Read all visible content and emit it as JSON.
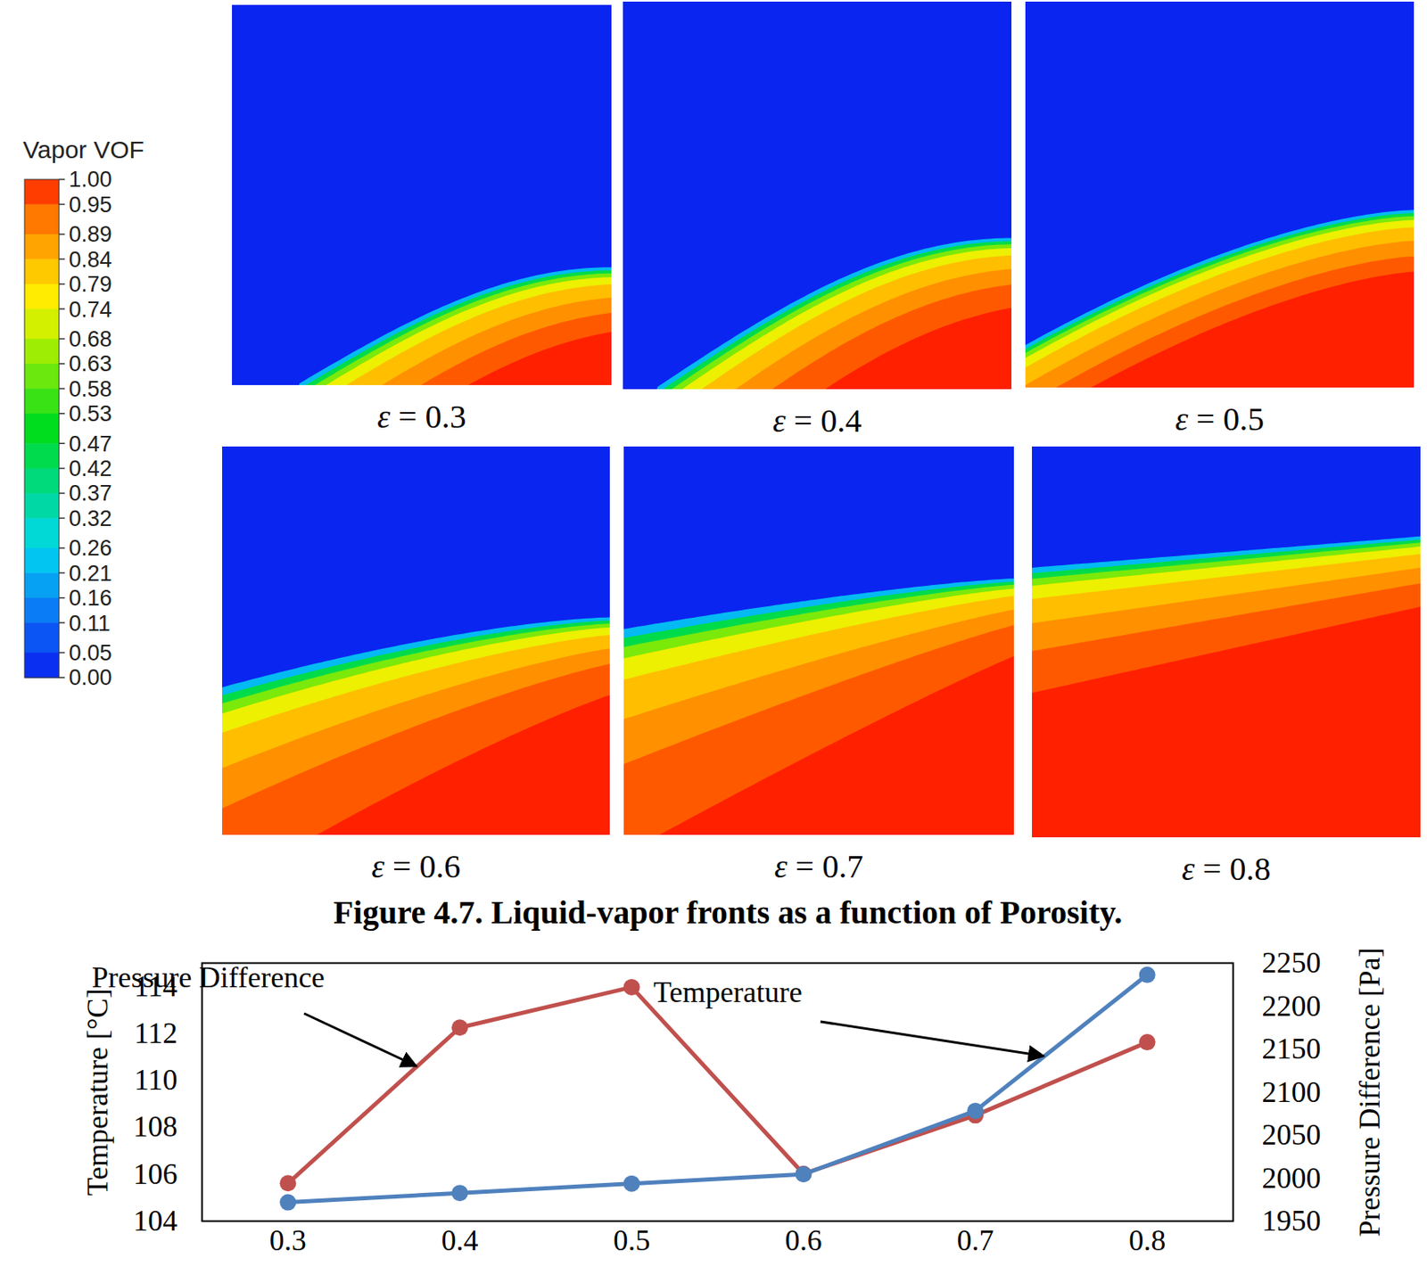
{
  "figure": {
    "colorbar": {
      "title": "Vapor VOF",
      "range": [
        0,
        1
      ],
      "ticks": [
        {
          "value": 1,
          "label": "1.00"
        },
        0.95,
        0.89,
        0.84,
        0.79,
        0.74,
        0.68,
        0.63,
        0.58,
        0.53,
        0.47,
        0.42,
        0.37,
        0.32,
        0.26,
        0.21,
        0.16,
        0.11,
        0.05,
        {
          "value": 0,
          "label": "0.00"
        }
      ]
    },
    "panels": [
      {
        "label": "ε = 0.3"
      },
      {
        "label": "ε = 0.4"
      },
      {
        "label": "ε = 0.5"
      },
      {
        "label": "ε = 0.6"
      },
      {
        "label": "ε = 0.7"
      },
      {
        "label": "ε = 0.8"
      }
    ],
    "caption": "Figure 4.7. Liquid-vapor fronts as a function of Porosity."
  },
  "chart_data": {
    "type": "line",
    "x": [
      0.3,
      0.4,
      0.5,
      0.6,
      0.7,
      0.8
    ],
    "xlim": [
      0.25,
      0.85
    ],
    "xticks": [
      0.3,
      0.4,
      0.5,
      0.6,
      0.7,
      0.8
    ],
    "ylabel": "Temperature [°C]",
    "ylim": [
      104,
      115
    ],
    "yticks": [
      104,
      106,
      108,
      110,
      112,
      114
    ],
    "y2label": "Pressure Difference [Pa]",
    "y2lim": [
      1950,
      2250
    ],
    "y2ticks": [
      1950,
      2000,
      2050,
      2100,
      2150,
      2200,
      2250
    ],
    "series": [
      {
        "name": "Pressure Difference",
        "color": "#c0504d",
        "axis": "y2",
        "marker": "circle",
        "values": [
          1994,
          2175,
          2222,
          2005,
          2073,
          2158
        ]
      },
      {
        "name": "Temperature",
        "color": "#4f81bd",
        "axis": "y",
        "marker": "circle",
        "values": [
          104.8,
          105.2,
          105.6,
          106.0,
          108.7,
          114.5
        ]
      }
    ],
    "annotations": [
      {
        "text": "Pressure Difference",
        "series": "Pressure Difference"
      },
      {
        "text": "Temperature",
        "series": "Temperature"
      }
    ]
  }
}
